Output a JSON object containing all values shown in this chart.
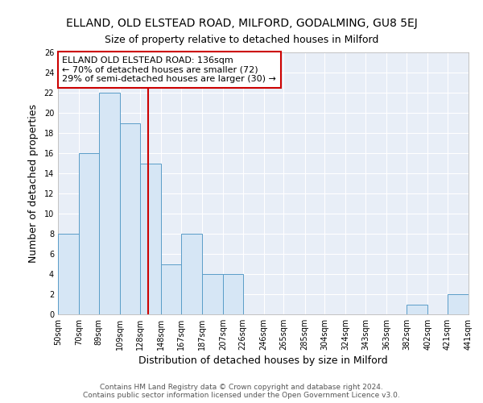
{
  "title": "ELLAND, OLD ELSTEAD ROAD, MILFORD, GODALMING, GU8 5EJ",
  "subtitle": "Size of property relative to detached houses in Milford",
  "xlabel": "Distribution of detached houses by size in Milford",
  "ylabel": "Number of detached properties",
  "bin_edges": [
    50,
    70,
    89,
    109,
    128,
    148,
    167,
    187,
    207,
    226,
    246,
    265,
    285,
    304,
    324,
    343,
    363,
    382,
    402,
    421,
    441
  ],
  "bar_heights": [
    8,
    16,
    22,
    19,
    15,
    5,
    8,
    4,
    4,
    0,
    0,
    0,
    0,
    0,
    0,
    0,
    0,
    1,
    0,
    2,
    0
  ],
  "bar_color": "#d6e6f5",
  "bar_edge_color": "#5a9dc8",
  "red_line_x": 136,
  "ylim": [
    0,
    26
  ],
  "yticks": [
    0,
    2,
    4,
    6,
    8,
    10,
    12,
    14,
    16,
    18,
    20,
    22,
    24,
    26
  ],
  "annotation_title": "ELLAND OLD ELSTEAD ROAD: 136sqm",
  "annotation_line1": "← 70% of detached houses are smaller (72)",
  "annotation_line2": "29% of semi-detached houses are larger (30) →",
  "annotation_box_color": "#ffffff",
  "annotation_box_edge": "#cc0000",
  "footer1": "Contains HM Land Registry data © Crown copyright and database right 2024.",
  "footer2": "Contains public sector information licensed under the Open Government Licence v3.0.",
  "tick_labels": [
    "50sqm",
    "70sqm",
    "89sqm",
    "109sqm",
    "128sqm",
    "148sqm",
    "167sqm",
    "187sqm",
    "207sqm",
    "226sqm",
    "246sqm",
    "265sqm",
    "285sqm",
    "304sqm",
    "324sqm",
    "343sqm",
    "363sqm",
    "382sqm",
    "402sqm",
    "421sqm",
    "441sqm"
  ],
  "background_color": "#ffffff",
  "plot_bg_color": "#e8eef7",
  "grid_color": "#ffffff",
  "title_fontsize": 10,
  "subtitle_fontsize": 9,
  "axis_label_fontsize": 9,
  "tick_fontsize": 7,
  "annotation_fontsize": 8,
  "footer_fontsize": 6.5
}
